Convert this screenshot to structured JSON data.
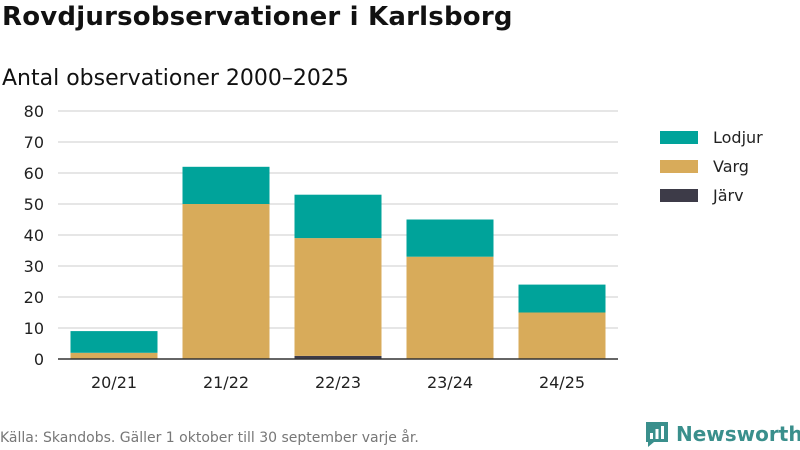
{
  "header": {
    "title": "Rovdjursobservationer i Karlsborg",
    "subtitle": "Antal observationer 2000–2025"
  },
  "footer": {
    "source": "Källa: Skandobs. Gäller 1 oktober till 30 september varje år.",
    "brand": "Newsworthy"
  },
  "chart_data": {
    "type": "bar",
    "stacked": true,
    "categories": [
      "20/21",
      "21/22",
      "22/23",
      "23/24",
      "24/25"
    ],
    "series": [
      {
        "name": "Järv",
        "color": "#3d3b48",
        "values": [
          0,
          0,
          1,
          0,
          0
        ]
      },
      {
        "name": "Varg",
        "color": "#d8ab5a",
        "values": [
          2,
          50,
          38,
          33,
          15
        ]
      },
      {
        "name": "Lodjur",
        "color": "#00a39a",
        "values": [
          7,
          12,
          14,
          12,
          9
        ]
      }
    ],
    "legend_order": [
      "Lodjur",
      "Varg",
      "Järv"
    ],
    "ylim": [
      0,
      80
    ],
    "yticks": [
      0,
      10,
      20,
      30,
      40,
      50,
      60,
      70,
      80
    ],
    "grid": true,
    "legend_position": "right"
  }
}
